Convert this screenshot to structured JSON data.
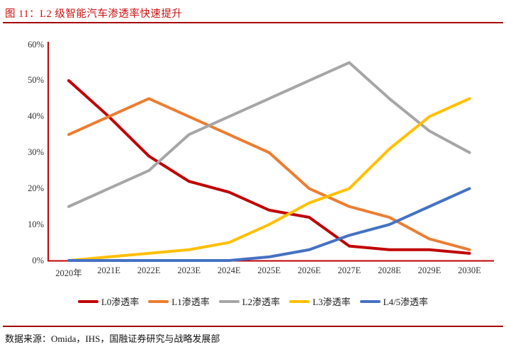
{
  "title": "图 11：L2 级智能汽车渗透率快速提升",
  "source": "数据来源：Omida，IHS，国融证券研究与战略发展部",
  "colors": {
    "title_red": "#cc1111",
    "rule_red": "#a50000",
    "axis_red": "#c00000"
  },
  "chart_data": {
    "type": "line",
    "title": "图 11：L2 级智能汽车渗透率快速提升",
    "categories": [
      "2020年",
      "2021E",
      "2022E",
      "2023E",
      "2024E",
      "2025E",
      "2026E",
      "2027E",
      "2028E",
      "2029E",
      "2030E"
    ],
    "series": [
      {
        "name": "L0渗透率",
        "color": "#c00000",
        "values": [
          50,
          40,
          29,
          22,
          19,
          14,
          12,
          4,
          3,
          3,
          2
        ]
      },
      {
        "name": "L1渗透率",
        "color": "#ed7d31",
        "values": [
          35,
          40,
          45,
          40,
          35,
          30,
          20,
          15,
          12,
          6,
          3
        ]
      },
      {
        "name": "L2渗透率",
        "color": "#a6a6a6",
        "values": [
          15,
          20,
          25,
          35,
          40,
          45,
          50,
          55,
          45,
          36,
          30
        ]
      },
      {
        "name": "L3渗透率",
        "color": "#ffc000",
        "values": [
          0,
          1,
          2,
          3,
          5,
          10,
          16,
          20,
          31,
          40,
          45
        ]
      },
      {
        "name": "L4/5渗透率",
        "color": "#4472c4",
        "values": [
          0,
          0,
          0,
          0,
          0,
          1,
          3,
          7,
          10,
          15,
          20
        ]
      }
    ],
    "xlabel": "",
    "ylabel": "",
    "ylim": [
      0,
      60
    ],
    "yticks": [
      "0%",
      "10%",
      "20%",
      "30%",
      "40%",
      "50%",
      "60%"
    ],
    "grid": false,
    "legend_position": "bottom"
  }
}
